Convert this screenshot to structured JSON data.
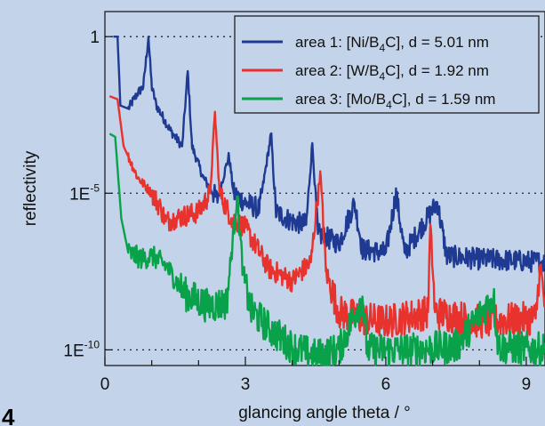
{
  "panel_tag": "4",
  "chart_data": {
    "type": "line",
    "xlabel": "glancing angle theta / °",
    "ylabel": "reflectivity",
    "xlim": [
      0,
      9.4
    ],
    "ylim_log10": [
      -10.5,
      0.8
    ],
    "y_scale": "log",
    "x_ticks": [
      0,
      3,
      6,
      9
    ],
    "x_tick_labels": [
      "0",
      "3",
      "6",
      "9"
    ],
    "y_ticks": [
      {
        "value": 1,
        "label": "1"
      },
      {
        "value": 1e-05,
        "label_base": "1E",
        "label_exp": "-5"
      },
      {
        "value": 1e-10,
        "label_base": "1E",
        "label_exp": "-10"
      }
    ],
    "grid": "dotted horizontal lines at y ticks",
    "legend_position": "top-right",
    "series": [
      {
        "name": "area 1: [Ni/B4C], d = 5.01 nm",
        "legend_parts": [
          "area 1: [Ni/B",
          "4",
          "C], d = 5.01 nm"
        ],
        "color": "#1f3a93",
        "peak_angles": [
          0.93,
          1.77,
          2.65,
          3.55,
          4.43,
          5.33,
          6.22,
          7.1
        ],
        "points": [
          [
            0.18,
            0.0
          ],
          [
            0.27,
            0.0
          ],
          [
            0.33,
            -2.2
          ],
          [
            0.5,
            -2.3
          ],
          [
            0.7,
            -1.8
          ],
          [
            0.82,
            -1.6
          ],
          [
            0.93,
            0.0
          ],
          [
            1.0,
            -1.6
          ],
          [
            1.1,
            -2.2
          ],
          [
            1.4,
            -3.0
          ],
          [
            1.65,
            -3.5
          ],
          [
            1.77,
            -1.1
          ],
          [
            1.86,
            -3.5
          ],
          [
            2.1,
            -4.5
          ],
          [
            2.4,
            -5.2
          ],
          [
            2.65,
            -3.8
          ],
          [
            2.75,
            -5.0
          ],
          [
            3.0,
            -5.3
          ],
          [
            3.3,
            -5.5
          ],
          [
            3.55,
            -3.1
          ],
          [
            3.65,
            -5.6
          ],
          [
            4.0,
            -5.9
          ],
          [
            4.3,
            -6.0
          ],
          [
            4.43,
            -3.4
          ],
          [
            4.55,
            -6.3
          ],
          [
            5.0,
            -6.6
          ],
          [
            5.33,
            -5.3
          ],
          [
            5.5,
            -6.8
          ],
          [
            6.0,
            -6.9
          ],
          [
            6.22,
            -5.0
          ],
          [
            6.4,
            -6.9
          ],
          [
            7.1,
            -5.3
          ],
          [
            7.3,
            -7.0
          ],
          [
            8.0,
            -7.1
          ],
          [
            9.4,
            -7.2
          ]
        ]
      },
      {
        "name": "area 2: [W/B4C], d = 1.92 nm",
        "legend_parts": [
          "area 2: [W/B",
          "4",
          "C], d = 1.92 nm"
        ],
        "color": "#e8322e",
        "peak_angles": [
          2.35,
          4.6,
          6.95,
          9.3
        ],
        "points": [
          [
            0.1,
            -1.9
          ],
          [
            0.27,
            -2.0
          ],
          [
            0.4,
            -3.5
          ],
          [
            0.7,
            -4.5
          ],
          [
            1.0,
            -5.0
          ],
          [
            1.2,
            -5.5
          ],
          [
            1.3,
            -5.9
          ],
          [
            1.5,
            -5.8
          ],
          [
            2.0,
            -5.6
          ],
          [
            2.25,
            -5.0
          ],
          [
            2.35,
            -2.4
          ],
          [
            2.45,
            -5.0
          ],
          [
            2.7,
            -5.8
          ],
          [
            3.0,
            -6.1
          ],
          [
            3.5,
            -7.4
          ],
          [
            4.0,
            -7.8
          ],
          [
            4.4,
            -7.2
          ],
          [
            4.6,
            -4.3
          ],
          [
            4.72,
            -7.5
          ],
          [
            5.0,
            -8.8
          ],
          [
            5.5,
            -9.0
          ],
          [
            6.0,
            -9.1
          ],
          [
            6.9,
            -8.8
          ],
          [
            6.95,
            -6.0
          ],
          [
            7.05,
            -8.8
          ],
          [
            8.0,
            -9.1
          ],
          [
            9.2,
            -9.0
          ],
          [
            9.3,
            -7.3
          ],
          [
            9.4,
            -8.6
          ]
        ]
      },
      {
        "name": "area 3: [Mo/B4C], d = 1.59 nm",
        "legend_parts": [
          "area 3: [Mo/B",
          "4",
          "C], d = 1.59 nm"
        ],
        "color": "#0aa14b",
        "peak_angles": [
          2.82,
          5.5,
          8.3
        ],
        "points": [
          [
            0.1,
            -3.1
          ],
          [
            0.22,
            -3.2
          ],
          [
            0.35,
            -5.8
          ],
          [
            0.5,
            -6.9
          ],
          [
            0.8,
            -7.1
          ],
          [
            1.0,
            -7.0
          ],
          [
            1.3,
            -7.3
          ],
          [
            1.7,
            -8.2
          ],
          [
            2.2,
            -8.6
          ],
          [
            2.6,
            -8.5
          ],
          [
            2.82,
            -5.1
          ],
          [
            2.95,
            -7.5
          ],
          [
            3.1,
            -8.7
          ],
          [
            3.5,
            -9.3
          ],
          [
            4.0,
            -9.9
          ],
          [
            4.5,
            -10.2
          ],
          [
            5.0,
            -10.0
          ],
          [
            5.5,
            -8.3
          ],
          [
            5.6,
            -10.0
          ],
          [
            6.5,
            -10.0
          ],
          [
            7.5,
            -9.9
          ],
          [
            8.3,
            -8.3
          ],
          [
            8.4,
            -9.9
          ],
          [
            9.4,
            -10.0
          ]
        ]
      }
    ]
  }
}
